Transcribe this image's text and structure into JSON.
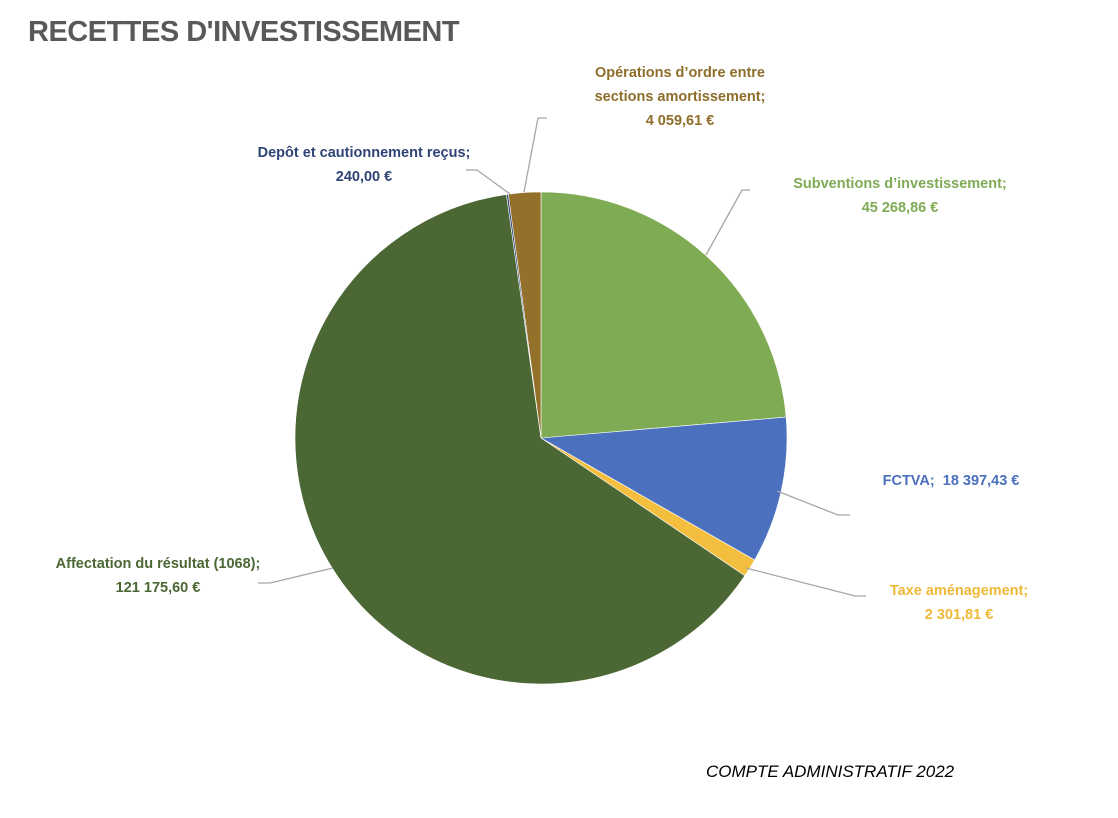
{
  "chart_data": {
    "type": "pie",
    "title": "RECETTES D'INVESTISSEMENT",
    "footer": "COMPTE ADMINISTRATIF 2022",
    "start_angle": "12 o'clock, clockwise",
    "slices": [
      {
        "name": "Subventions d’investissement;",
        "value": 45268.86,
        "value_label": "45 268,86  €",
        "color": "#7FAB55",
        "label_color": "#7FAB55"
      },
      {
        "name": "FCTVA;",
        "value": 18397.43,
        "value_label": "18 397,43  €",
        "color": "#4A70BE",
        "label_color": "#4A70BE"
      },
      {
        "name": "Taxe aménagement;",
        "value": 2301.81,
        "value_label": "2 301,81  €",
        "color": "#F4BE3E",
        "label_color": "#F0B836"
      },
      {
        "name": "Affectation du résultat (1068);",
        "value": 121175.6,
        "value_label": "121 175,60  €",
        "color": "#4B6734",
        "label_color": "#4B6734"
      },
      {
        "name": "Depôt et cautionnement reçus;",
        "value": 240.0,
        "value_label": "240,00  €",
        "color": "#2E4476",
        "label_color": "#2E4476"
      },
      {
        "name": "Opérations d’ordre entre sections amortissement;",
        "name_line1": "Opérations d’ordre entre",
        "name_line2": "sections amortissement;",
        "value": 4059.61,
        "value_label": "4 059,61  €",
        "color": "#94712A",
        "label_color": "#8E6E2A"
      }
    ]
  }
}
